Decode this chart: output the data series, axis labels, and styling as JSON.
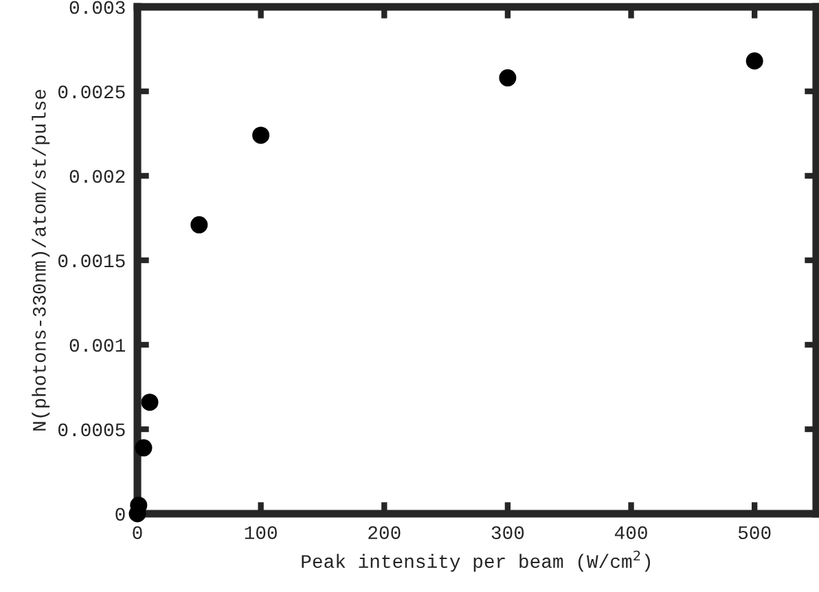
{
  "chart_data": {
    "type": "scatter",
    "xlabel": "Peak intensity per beam (W/cm$^{2}$)",
    "ylabel": "N(photons-330nm)/atom/st/pulse",
    "x": [
      0,
      1,
      5,
      10,
      50,
      100,
      300,
      500
    ],
    "series": [
      {
        "color": "#000000",
        "values": [
          0,
          5e-05,
          0.00039,
          0.00066,
          0.00171,
          0.00224,
          0.00258,
          0.00268
        ]
      }
    ],
    "xlim": [
      0,
      550
    ],
    "xticks": [
      0,
      100,
      200,
      300,
      400,
      500
    ],
    "ylim": [
      0,
      0.003
    ],
    "yticks": [
      0,
      0.0005,
      0.001,
      0.0015,
      0.002,
      0.0025,
      0.003
    ],
    "marker": "circle",
    "grid": false,
    "legend": false
  }
}
